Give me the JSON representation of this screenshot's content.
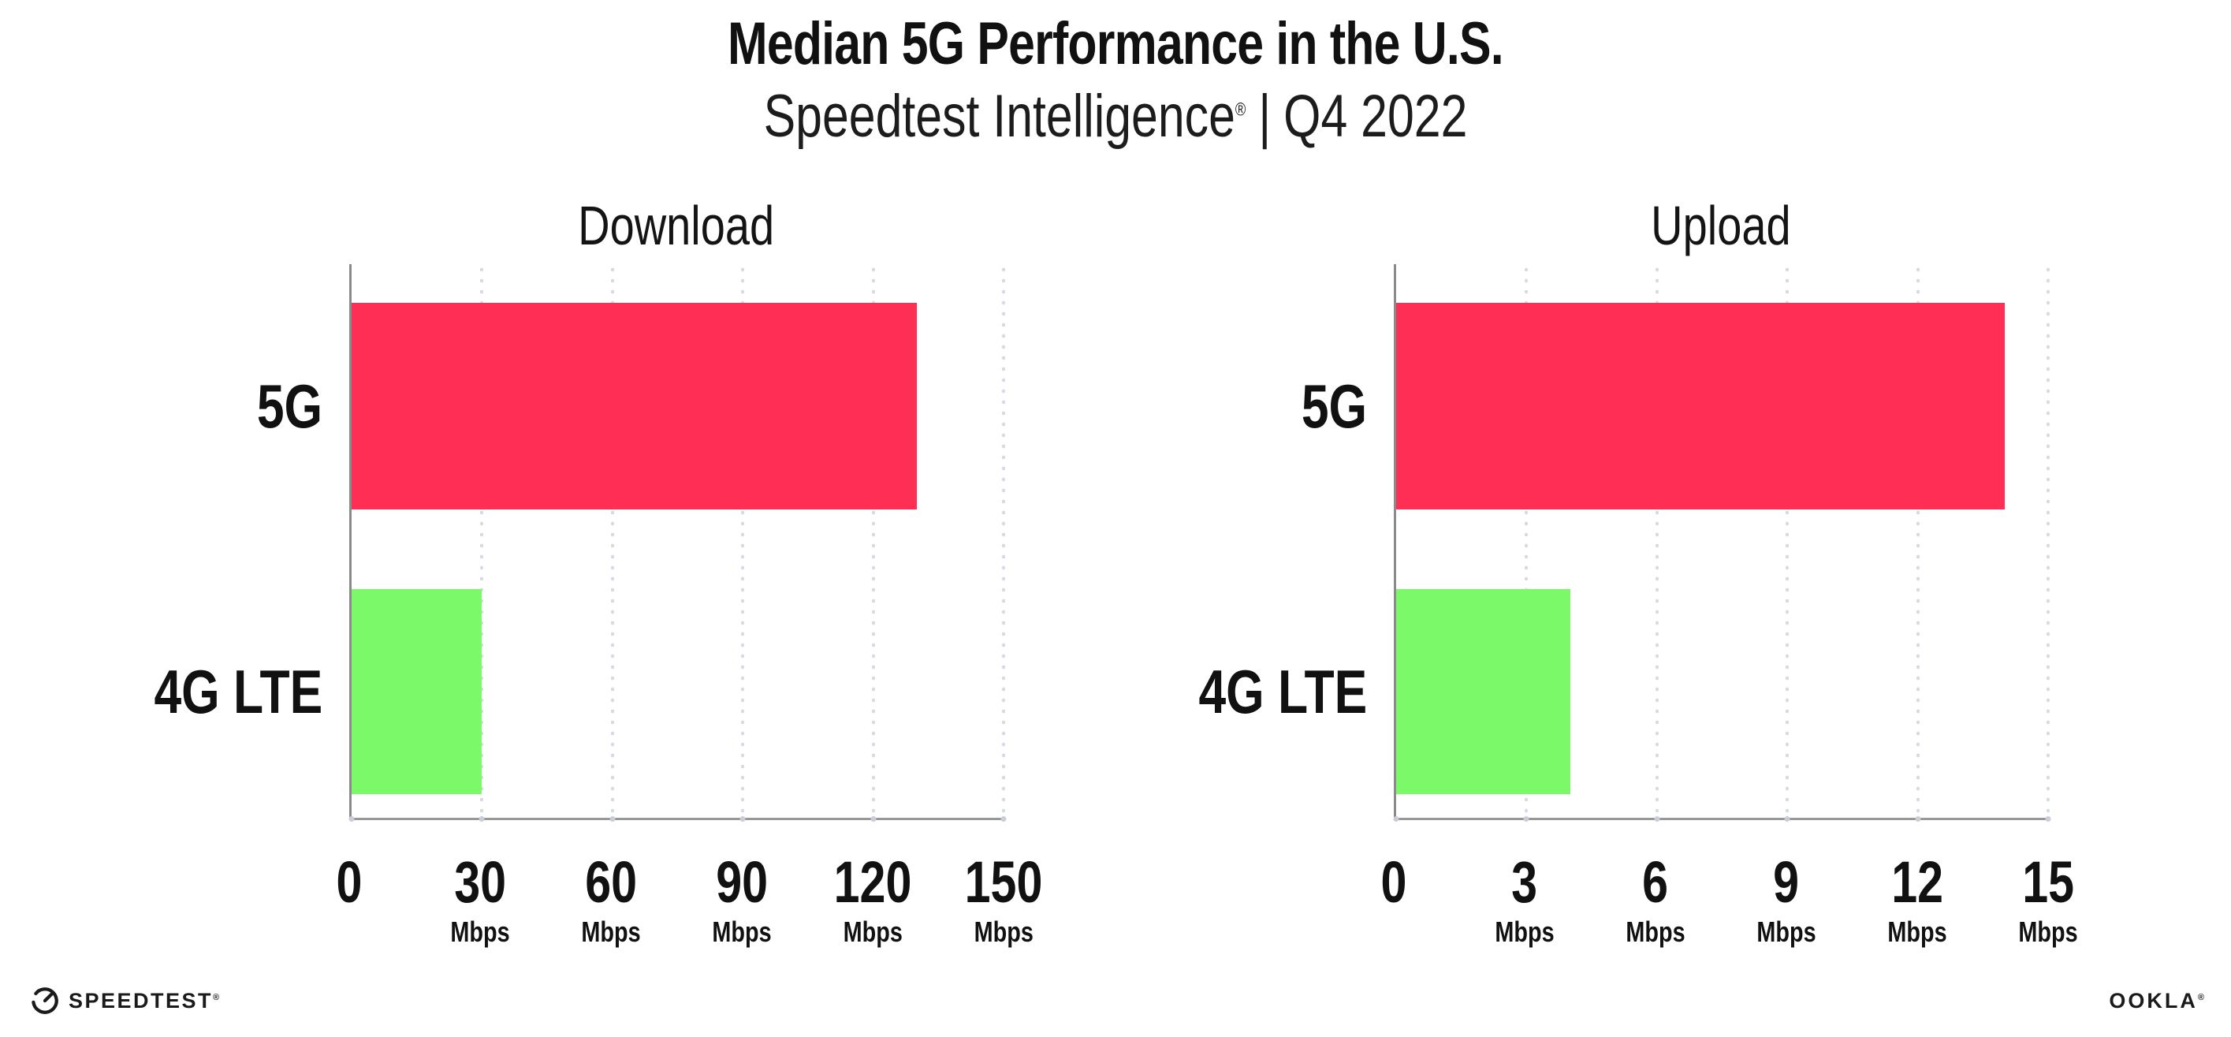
{
  "header": {
    "title": "Median 5G Performance in the U.S.",
    "subtitle_brand": "Speedtest Intelligence",
    "subtitle_reg": "®",
    "subtitle_sep": "|",
    "subtitle_period": "Q4 2022"
  },
  "chart_data": [
    {
      "type": "bar",
      "orientation": "horizontal",
      "title": "Download",
      "categories": [
        "5G",
        "4G LTE"
      ],
      "values": [
        130,
        30
      ],
      "unit": "Mbps",
      "xlim": [
        0,
        150
      ],
      "xticks": [
        0,
        30,
        60,
        90,
        120,
        150
      ],
      "grid": "dotted-vertical",
      "legend": "none",
      "bar_colors": [
        "#FF2E55",
        "#7CF969"
      ]
    },
    {
      "type": "bar",
      "orientation": "horizontal",
      "title": "Upload",
      "categories": [
        "5G",
        "4G LTE"
      ],
      "values": [
        14,
        4
      ],
      "unit": "Mbps",
      "xlim": [
        0,
        15
      ],
      "xticks": [
        0,
        3,
        6,
        9,
        12,
        15
      ],
      "grid": "dotted-vertical",
      "legend": "none",
      "bar_colors": [
        "#FF2E55",
        "#7CF969"
      ]
    }
  ],
  "colors": {
    "bar_5g": "#FF2E55",
    "bar_4g_lte": "#7CF969",
    "axis": "#8A8A8A",
    "gridline": "#D7D9E4",
    "text": "#111111",
    "background": "#FFFFFF"
  },
  "footer": {
    "speedtest_label": "SPEEDTEST",
    "speedtest_reg": "®",
    "ookla_label": "OOKLA",
    "ookla_reg": "®"
  }
}
